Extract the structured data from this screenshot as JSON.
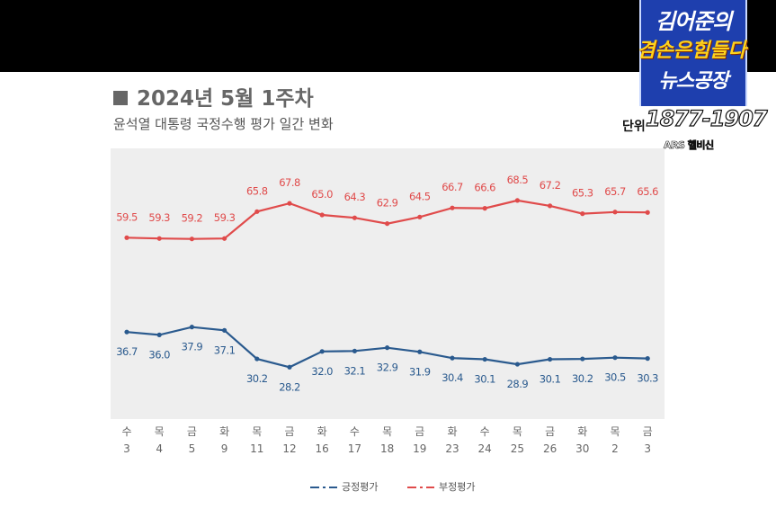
{
  "broadcast": {
    "logo_line1": "김어준의",
    "logo_line2": "겸손은힘들다",
    "logo_line3": "뉴스공장",
    "phone_prefix": "단위",
    "phone_number": "1877-1907",
    "phone_sub": "ARS 헬비신"
  },
  "colors": {
    "positive": "#2a5a8e",
    "negative": "#e04b4b",
    "plot_background": "#eeeeee"
  },
  "chart_data": {
    "type": "line",
    "title": "2024년 5월 1주차",
    "subtitle": "윤석열 대통령 국정수행 평가 일간 변화",
    "categories": [
      {
        "day": "수",
        "date": "3"
      },
      {
        "day": "목",
        "date": "4"
      },
      {
        "day": "금",
        "date": "5"
      },
      {
        "day": "화",
        "date": "9"
      },
      {
        "day": "목",
        "date": "11"
      },
      {
        "day": "금",
        "date": "12"
      },
      {
        "day": "화",
        "date": "16"
      },
      {
        "day": "수",
        "date": "17"
      },
      {
        "day": "목",
        "date": "18"
      },
      {
        "day": "금",
        "date": "19"
      },
      {
        "day": "화",
        "date": "23"
      },
      {
        "day": "수",
        "date": "24"
      },
      {
        "day": "목",
        "date": "25"
      },
      {
        "day": "금",
        "date": "26"
      },
      {
        "day": "화",
        "date": "30"
      },
      {
        "day": "목",
        "date": "2"
      },
      {
        "day": "금",
        "date": "3"
      }
    ],
    "series": [
      {
        "name": "긍정평가",
        "color": "#2a5a8e",
        "labels_below": true,
        "values": [
          36.7,
          36.0,
          37.9,
          37.1,
          30.2,
          28.2,
          32.0,
          32.1,
          32.9,
          31.9,
          30.4,
          30.1,
          28.9,
          30.1,
          30.2,
          30.5,
          30.3
        ]
      },
      {
        "name": "부정평가",
        "color": "#e04b4b",
        "labels_below": false,
        "values": [
          59.5,
          59.3,
          59.2,
          59.3,
          65.8,
          67.8,
          65.0,
          64.3,
          62.9,
          64.5,
          66.7,
          66.6,
          68.5,
          67.2,
          65.3,
          65.7,
          65.6
        ]
      }
    ],
    "grid": false,
    "legend_position": "bottom-center"
  }
}
